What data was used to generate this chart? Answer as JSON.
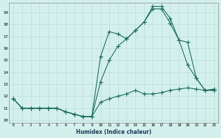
{
  "xlabel": "Humidex (Indice chaleur)",
  "bg_color": "#d4f0ec",
  "grid_color": "#b8ddd8",
  "line_color": "#1a6b5a",
  "xlim": [
    -0.5,
    23.5
  ],
  "ylim": [
    9.8,
    19.8
  ],
  "xticks": [
    0,
    1,
    2,
    3,
    4,
    5,
    6,
    7,
    8,
    9,
    10,
    11,
    12,
    13,
    14,
    15,
    16,
    17,
    18,
    19,
    20,
    21,
    22,
    23
  ],
  "yticks": [
    10,
    11,
    12,
    13,
    14,
    15,
    16,
    17,
    18,
    19
  ],
  "line1_x": [
    0,
    1,
    2,
    3,
    4,
    5,
    6,
    7,
    8,
    9,
    10,
    11,
    12,
    13,
    14,
    15,
    16,
    17,
    18,
    19,
    20,
    21,
    22,
    23
  ],
  "line1_y": [
    11.8,
    11.0,
    11.0,
    11.0,
    11.0,
    11.0,
    10.7,
    10.5,
    10.3,
    10.3,
    11.5,
    11.8,
    12.0,
    12.2,
    12.5,
    12.2,
    12.2,
    12.3,
    12.5,
    12.6,
    12.7,
    12.6,
    12.5,
    12.6
  ],
  "line2_x": [
    0,
    1,
    2,
    3,
    4,
    5,
    6,
    7,
    8,
    9,
    10,
    11,
    12,
    13,
    14,
    15,
    16,
    17,
    18,
    19,
    20,
    21,
    22,
    23
  ],
  "line2_y": [
    11.8,
    11.0,
    11.0,
    11.0,
    11.0,
    11.0,
    10.7,
    10.5,
    10.3,
    10.3,
    13.2,
    15.0,
    16.2,
    16.8,
    17.5,
    18.2,
    19.5,
    19.5,
    18.5,
    16.7,
    16.5,
    13.5,
    12.5,
    12.5
  ],
  "line3_x": [
    0,
    1,
    2,
    3,
    4,
    5,
    6,
    7,
    8,
    9,
    10,
    11,
    12,
    13,
    14,
    15,
    16,
    17,
    18,
    19,
    20,
    21,
    22,
    23
  ],
  "line3_y": [
    11.8,
    11.0,
    11.0,
    11.0,
    11.0,
    11.0,
    10.7,
    10.5,
    10.3,
    10.3,
    15.3,
    17.4,
    17.2,
    16.8,
    17.5,
    18.2,
    19.3,
    19.3,
    18.1,
    16.7,
    14.6,
    13.5,
    12.5,
    12.5
  ]
}
